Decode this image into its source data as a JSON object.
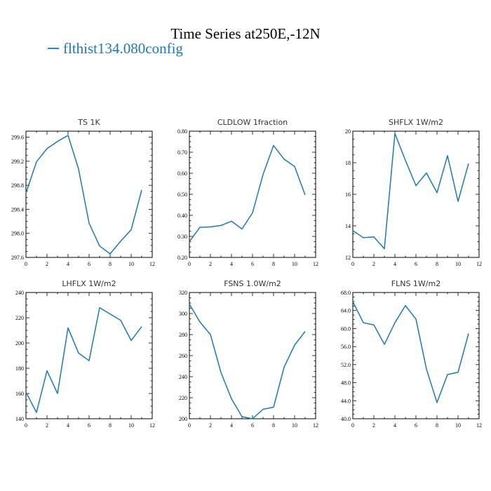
{
  "figure": {
    "title": "Time Series at250E,-12N",
    "legend_label": "flthist134.080config",
    "line_color": "#1f77b4"
  },
  "chart_data": [
    {
      "type": "line",
      "title": "TS   1K",
      "x": [
        0,
        1,
        2,
        3,
        4,
        5,
        6,
        7,
        8,
        9,
        10,
        11
      ],
      "series": [
        {
          "values": [
            298.67,
            299.19,
            299.41,
            299.53,
            299.63,
            299.07,
            298.17,
            297.79,
            297.66,
            297.87,
            298.06,
            298.72
          ]
        }
      ],
      "xlim": [
        0,
        12
      ],
      "xticks": [
        0,
        2,
        4,
        6,
        8,
        10,
        12
      ],
      "ylim": [
        297.6,
        299.7
      ],
      "yticks": [
        "297.6",
        "298.0",
        "298.4",
        "298.8",
        "299.2",
        "299.6"
      ]
    },
    {
      "type": "line",
      "title": "CLDLOW   1fraction",
      "x": [
        0,
        1,
        2,
        3,
        4,
        5,
        6,
        7,
        8,
        9,
        10,
        11
      ],
      "series": [
        {
          "values": [
            0.275,
            0.343,
            0.345,
            0.352,
            0.372,
            0.335,
            0.412,
            0.594,
            0.732,
            0.667,
            0.632,
            0.497
          ]
        }
      ],
      "xlim": [
        0,
        12
      ],
      "xticks": [
        0,
        2,
        4,
        6,
        8,
        10,
        12
      ],
      "ylim": [
        0.2,
        0.8
      ],
      "yticks": [
        "0.20",
        "0.30",
        "0.40",
        "0.50",
        "0.60",
        "0.70",
        "0.80"
      ]
    },
    {
      "type": "line",
      "title": "SHFLX   1W/m2",
      "x": [
        0,
        1,
        2,
        3,
        4,
        5,
        6,
        7,
        8,
        9,
        10,
        11
      ],
      "series": [
        {
          "values": [
            13.7,
            13.25,
            13.3,
            12.55,
            19.85,
            18.15,
            16.55,
            17.35,
            16.1,
            18.45,
            15.55,
            17.95
          ]
        }
      ],
      "xlim": [
        0,
        12
      ],
      "xticks": [
        0,
        2,
        4,
        6,
        8,
        10,
        12
      ],
      "ylim": [
        12,
        20
      ],
      "yticks": [
        "12",
        "14",
        "16",
        "18",
        "20"
      ]
    },
    {
      "type": "line",
      "title": "LHFLX   1W/m2",
      "x": [
        0,
        1,
        2,
        3,
        4,
        5,
        6,
        7,
        8,
        9,
        10,
        11
      ],
      "series": [
        {
          "values": [
            161,
            145,
            178,
            160,
            212,
            192,
            186,
            228,
            223,
            218,
            202,
            213
          ]
        }
      ],
      "xlim": [
        0,
        12
      ],
      "xticks": [
        0,
        2,
        4,
        6,
        8,
        10,
        12
      ],
      "ylim": [
        140,
        240
      ],
      "yticks": [
        "140",
        "160",
        "180",
        "200",
        "220",
        "240"
      ]
    },
    {
      "type": "line",
      "title": "FSNS   1.0W/m2",
      "x": [
        0,
        1,
        2,
        3,
        4,
        5,
        6,
        7,
        8,
        9,
        10,
        11
      ],
      "series": [
        {
          "values": [
            309,
            292,
            280,
            244,
            219,
            202,
            200,
            209,
            211,
            249,
            270,
            283
          ]
        }
      ],
      "xlim": [
        0,
        12
      ],
      "xticks": [
        0,
        2,
        4,
        6,
        8,
        10,
        12
      ],
      "ylim": [
        200,
        320
      ],
      "yticks": [
        "200",
        "220",
        "240",
        "260",
        "280",
        "300",
        "320"
      ]
    },
    {
      "type": "line",
      "title": "FLNS   1W/m2",
      "x": [
        0,
        1,
        2,
        3,
        4,
        5,
        6,
        7,
        8,
        9,
        10,
        11
      ],
      "series": [
        {
          "values": [
            66.0,
            61.3,
            60.8,
            56.5,
            61.3,
            65.1,
            62.1,
            51.0,
            43.6,
            49.8,
            50.3,
            58.9
          ]
        }
      ],
      "xlim": [
        0,
        12
      ],
      "xticks": [
        0,
        2,
        4,
        6,
        8,
        10,
        12
      ],
      "ylim": [
        40,
        68
      ],
      "yticks": [
        "40.0",
        "44.0",
        "48.0",
        "52.0",
        "56.0",
        "60.0",
        "64.0",
        "68.0"
      ]
    }
  ]
}
